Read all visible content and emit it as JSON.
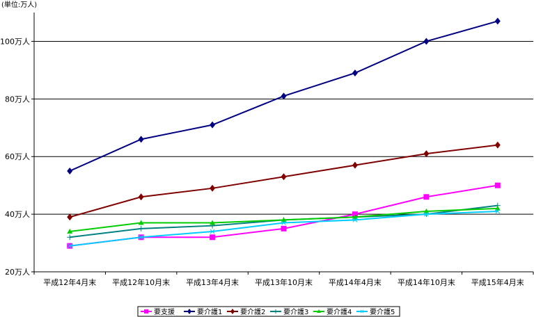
{
  "chart_data": {
    "type": "line",
    "unit_label": "(単位:万人)",
    "categories": [
      "平成12年4月末",
      "平成12年10月末",
      "平成13年4月末",
      "平成13年10月末",
      "平成14年4月末",
      "平成14年10月末",
      "平成15年4月末"
    ],
    "y_ticks": [
      "20万人",
      "40万人",
      "60万人",
      "80万人",
      "100万人"
    ],
    "ylim": [
      20,
      110
    ],
    "grid": true,
    "legend_position": "bottom",
    "series": [
      {
        "name": "要支援",
        "color": "#ff00ff",
        "marker": "square",
        "values": [
          29,
          32,
          32,
          35,
          40,
          46,
          50
        ]
      },
      {
        "name": "要介護1",
        "color": "#000080",
        "marker": "diamond",
        "values": [
          55,
          66,
          71,
          81,
          89,
          100,
          107
        ]
      },
      {
        "name": "要介護2",
        "color": "#800000",
        "marker": "diamond",
        "values": [
          39,
          46,
          49,
          53,
          57,
          61,
          64
        ]
      },
      {
        "name": "要介護3",
        "color": "#008080",
        "marker": "plus",
        "values": [
          32,
          35,
          36,
          38,
          39,
          40,
          43
        ]
      },
      {
        "name": "要介護4",
        "color": "#00cc00",
        "marker": "triangle",
        "values": [
          34,
          37,
          37,
          38,
          39,
          41,
          42
        ]
      },
      {
        "name": "要介護5",
        "color": "#00ccff",
        "marker": "cross",
        "values": [
          29,
          32,
          34,
          37,
          38,
          40,
          41
        ]
      }
    ]
  }
}
